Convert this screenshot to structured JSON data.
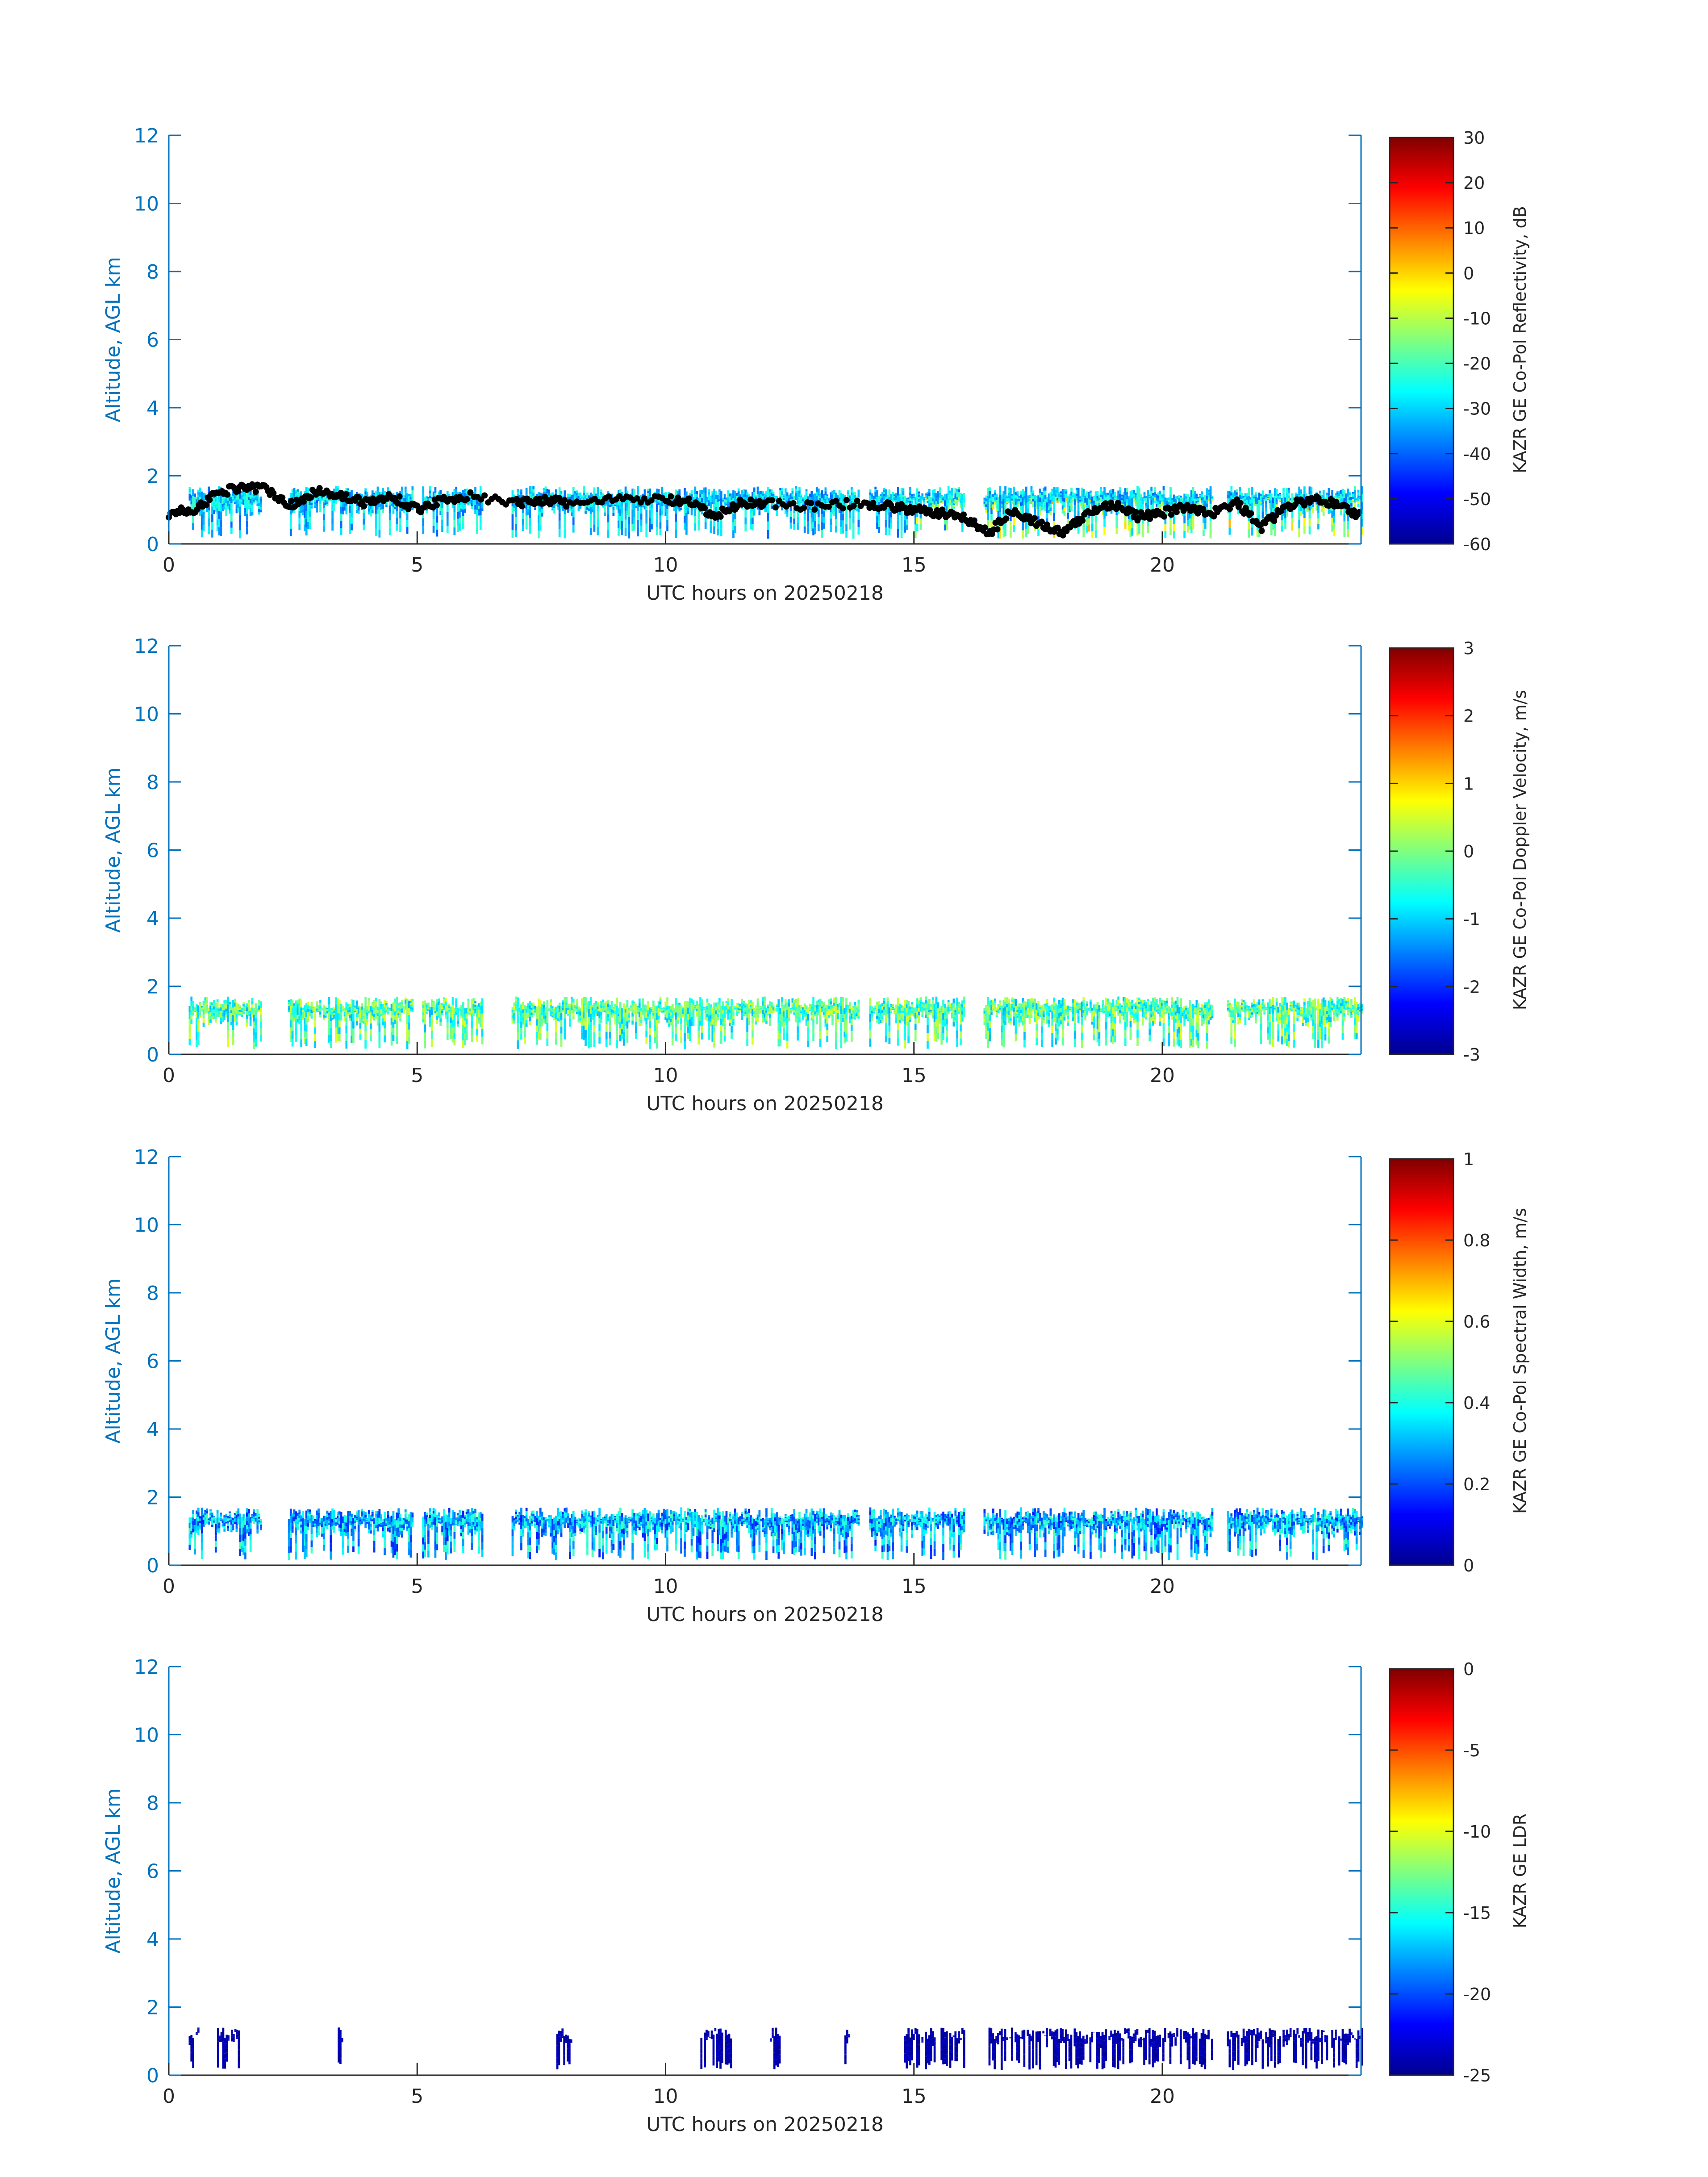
{
  "figure": {
    "xlabel": "UTC hours on 20250218",
    "ylabel": "Altitude, AGL km",
    "xticks": [
      0,
      5,
      10,
      15,
      20
    ],
    "yticks": [
      0,
      2,
      4,
      6,
      8,
      10,
      12
    ],
    "axis_color": "#0072BD",
    "xaxis_color": "#262626",
    "colormap": "jet"
  },
  "chart_data": [
    {
      "type": "heatmap",
      "title": "",
      "xlabel": "UTC hours on 20250218",
      "ylabel": "Altitude, AGL km",
      "xlim": [
        0,
        24
      ],
      "ylim": [
        0,
        12
      ],
      "colorbar": {
        "label": "KAZR GE Co-Pol Reflectivity, dB",
        "range": [
          -60,
          30
        ],
        "ticks": [
          30,
          20,
          10,
          0,
          -10,
          -20,
          -30,
          -40,
          -50,
          -60
        ]
      },
      "cloud_segments_hours": [
        [
          0.4,
          1.85
        ],
        [
          2.4,
          4.9
        ],
        [
          5.1,
          6.3
        ],
        [
          6.9,
          13.9
        ],
        [
          14.1,
          16.0
        ],
        [
          16.4,
          21.0
        ],
        [
          21.3,
          24.0
        ]
      ],
      "cloud_top_km": 1.7,
      "overlay": {
        "name": "cloud base",
        "color": "#000000",
        "points": [
          [
            0.0,
            0.9
          ],
          [
            0.5,
            1.0
          ],
          [
            1.0,
            1.5
          ],
          [
            1.5,
            1.7
          ],
          [
            2.0,
            1.6
          ],
          [
            2.5,
            1.1
          ],
          [
            3.0,
            1.6
          ],
          [
            3.5,
            1.4
          ],
          [
            4.0,
            1.2
          ],
          [
            4.5,
            1.4
          ],
          [
            5.0,
            1.0
          ],
          [
            5.5,
            1.3
          ],
          [
            6.0,
            1.4
          ],
          [
            7.0,
            1.2
          ],
          [
            7.5,
            1.3
          ],
          [
            8.0,
            1.2
          ],
          [
            9.0,
            1.3
          ],
          [
            10.0,
            1.3
          ],
          [
            10.5,
            1.2
          ],
          [
            11.0,
            0.8
          ],
          [
            11.5,
            1.2
          ],
          [
            12.0,
            1.2
          ],
          [
            13.0,
            1.1
          ],
          [
            14.0,
            1.2
          ],
          [
            14.5,
            1.1
          ],
          [
            15.0,
            1.0
          ],
          [
            15.5,
            0.9
          ],
          [
            16.0,
            0.8
          ],
          [
            16.5,
            0.3
          ],
          [
            17.0,
            1.0
          ],
          [
            17.5,
            0.6
          ],
          [
            18.0,
            0.3
          ],
          [
            18.5,
            0.9
          ],
          [
            19.0,
            1.2
          ],
          [
            19.5,
            0.8
          ],
          [
            20.0,
            0.9
          ],
          [
            20.5,
            1.1
          ],
          [
            21.0,
            0.9
          ],
          [
            21.5,
            1.2
          ],
          [
            22.0,
            0.5
          ],
          [
            22.5,
            1.1
          ],
          [
            23.0,
            1.3
          ],
          [
            23.5,
            1.2
          ],
          [
            24.0,
            0.8
          ]
        ]
      }
    },
    {
      "type": "heatmap",
      "title": "",
      "xlabel": "UTC hours on 20250218",
      "ylabel": "Altitude, AGL km",
      "xlim": [
        0,
        24
      ],
      "ylim": [
        0,
        12
      ],
      "colorbar": {
        "label": "KAZR GE Co-Pol Doppler Velocity, m/s",
        "range": [
          -3,
          3
        ],
        "ticks": [
          3,
          2,
          1,
          0,
          -1,
          -2,
          -3
        ]
      },
      "cloud_segments_hours": [
        [
          0.4,
          1.85
        ],
        [
          2.4,
          4.9
        ],
        [
          5.1,
          6.3
        ],
        [
          6.9,
          13.9
        ],
        [
          14.1,
          16.0
        ],
        [
          16.4,
          21.0
        ],
        [
          21.3,
          24.0
        ]
      ],
      "cloud_top_km": 1.7
    },
    {
      "type": "heatmap",
      "title": "",
      "xlabel": "UTC hours on 20250218",
      "ylabel": "Altitude, AGL km",
      "xlim": [
        0,
        24
      ],
      "ylim": [
        0,
        12
      ],
      "colorbar": {
        "label": "KAZR GE Co-Pol Spectral Width, m/s",
        "range": [
          0,
          1
        ],
        "ticks": [
          1,
          0.8,
          0.6,
          0.4,
          0.2,
          0
        ]
      },
      "cloud_segments_hours": [
        [
          0.4,
          1.85
        ],
        [
          2.4,
          4.9
        ],
        [
          5.1,
          6.3
        ],
        [
          6.9,
          13.9
        ],
        [
          14.1,
          16.0
        ],
        [
          16.4,
          21.0
        ],
        [
          21.3,
          24.0
        ]
      ],
      "cloud_top_km": 1.7
    },
    {
      "type": "heatmap",
      "title": "",
      "xlabel": "UTC hours on 20250218",
      "ylabel": "Altitude, AGL km",
      "xlim": [
        0,
        24
      ],
      "ylim": [
        0,
        12
      ],
      "colorbar": {
        "label": "KAZR GE LDR",
        "range": [
          -25,
          0
        ],
        "ticks": [
          0,
          -5,
          -10,
          -15,
          -20,
          -25
        ]
      },
      "cloud_segments_hours": [
        [
          0.4,
          0.6
        ],
        [
          0.9,
          1.4
        ],
        [
          3.4,
          3.5
        ],
        [
          7.8,
          8.1
        ],
        [
          10.7,
          11.3
        ],
        [
          12.1,
          12.3
        ],
        [
          13.6,
          13.7
        ],
        [
          14.8,
          16.0
        ],
        [
          16.5,
          21.0
        ],
        [
          21.3,
          24.0
        ]
      ],
      "cloud_top_km": 1.4
    }
  ]
}
